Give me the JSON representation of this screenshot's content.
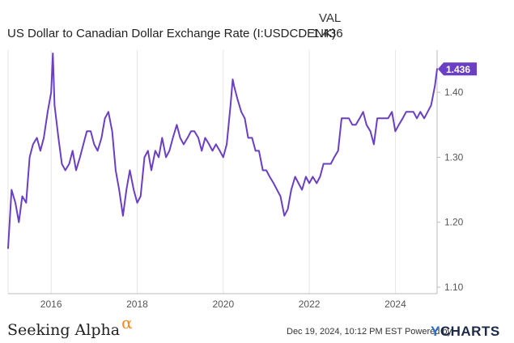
{
  "header": {
    "column_label": "VAL",
    "series_name": "US Dollar to Canadian Dollar Exchange Rate (I:USDCDENK)",
    "series_value": "1.436"
  },
  "footer": {
    "brand": "Seeking Alpha",
    "brand_symbol": "α",
    "timestamp": "Dec 19, 2024, 10:12 PM EST",
    "powered_by": "Powered by",
    "logo_y": "Y",
    "logo_rest": "CHARTS"
  },
  "colors": {
    "line": "#6a3fc4",
    "badge": "#6a3fc4",
    "brand_alpha": "#f08a24"
  },
  "chart_data": {
    "type": "line",
    "x_tick_labels": [
      "2016",
      "2018",
      "2020",
      "2022",
      "2024"
    ],
    "x_ticks": [
      2016,
      2018,
      2020,
      2022,
      2024
    ],
    "xlim": [
      2015.0,
      2024.97
    ],
    "y_tick_labels": [
      "1.10",
      "1.20",
      "1.30",
      "1.40"
    ],
    "y_ticks": [
      1.1,
      1.2,
      1.3,
      1.4
    ],
    "ylim": [
      1.09,
      1.465
    ],
    "grid": "vertical",
    "last_value_label": "1.436",
    "series": [
      {
        "x": [
          2015.0,
          2015.08,
          2015.17,
          2015.25,
          2015.33,
          2015.42,
          2015.5,
          2015.58,
          2015.67,
          2015.75,
          2015.83,
          2015.92,
          2016.0,
          2016.04,
          2016.08,
          2016.17,
          2016.25,
          2016.33,
          2016.42,
          2016.5,
          2016.58,
          2016.67,
          2016.75,
          2016.83,
          2016.92,
          2017.0,
          2017.08,
          2017.17,
          2017.25,
          2017.33,
          2017.42,
          2017.5,
          2017.58,
          2017.67,
          2017.75,
          2017.83,
          2017.92,
          2018.0,
          2018.08,
          2018.17,
          2018.25,
          2018.33,
          2018.42,
          2018.5,
          2018.58,
          2018.67,
          2018.75,
          2018.83,
          2018.92,
          2019.0,
          2019.08,
          2019.17,
          2019.25,
          2019.33,
          2019.42,
          2019.5,
          2019.58,
          2019.67,
          2019.75,
          2019.83,
          2019.92,
          2020.0,
          2020.08,
          2020.17,
          2020.22,
          2020.25,
          2020.33,
          2020.42,
          2020.5,
          2020.58,
          2020.67,
          2020.75,
          2020.83,
          2020.92,
          2021.0,
          2021.08,
          2021.17,
          2021.25,
          2021.33,
          2021.42,
          2021.5,
          2021.58,
          2021.67,
          2021.75,
          2021.83,
          2021.92,
          2022.0,
          2022.08,
          2022.17,
          2022.25,
          2022.33,
          2022.42,
          2022.5,
          2022.58,
          2022.67,
          2022.75,
          2022.83,
          2022.92,
          2023.0,
          2023.08,
          2023.17,
          2023.25,
          2023.33,
          2023.42,
          2023.5,
          2023.58,
          2023.67,
          2023.75,
          2023.83,
          2023.92,
          2024.0,
          2024.08,
          2024.17,
          2024.25,
          2024.33,
          2024.42,
          2024.5,
          2024.58,
          2024.67,
          2024.75,
          2024.83,
          2024.92,
          2024.97
        ],
        "y": [
          1.16,
          1.25,
          1.23,
          1.2,
          1.24,
          1.23,
          1.3,
          1.32,
          1.33,
          1.31,
          1.33,
          1.37,
          1.4,
          1.46,
          1.38,
          1.33,
          1.29,
          1.28,
          1.29,
          1.31,
          1.28,
          1.3,
          1.32,
          1.34,
          1.34,
          1.32,
          1.31,
          1.33,
          1.36,
          1.37,
          1.34,
          1.28,
          1.25,
          1.21,
          1.25,
          1.28,
          1.25,
          1.23,
          1.24,
          1.3,
          1.31,
          1.28,
          1.31,
          1.3,
          1.33,
          1.3,
          1.31,
          1.33,
          1.35,
          1.33,
          1.32,
          1.33,
          1.34,
          1.34,
          1.33,
          1.31,
          1.33,
          1.32,
          1.31,
          1.32,
          1.31,
          1.3,
          1.32,
          1.38,
          1.42,
          1.41,
          1.39,
          1.37,
          1.36,
          1.33,
          1.33,
          1.31,
          1.31,
          1.28,
          1.28,
          1.27,
          1.26,
          1.25,
          1.24,
          1.21,
          1.22,
          1.25,
          1.27,
          1.26,
          1.25,
          1.27,
          1.26,
          1.27,
          1.26,
          1.27,
          1.29,
          1.29,
          1.29,
          1.3,
          1.31,
          1.36,
          1.36,
          1.36,
          1.35,
          1.35,
          1.36,
          1.37,
          1.35,
          1.34,
          1.32,
          1.36,
          1.36,
          1.36,
          1.36,
          1.37,
          1.34,
          1.35,
          1.36,
          1.37,
          1.37,
          1.37,
          1.36,
          1.37,
          1.36,
          1.37,
          1.38,
          1.41,
          1.436
        ]
      }
    ]
  }
}
